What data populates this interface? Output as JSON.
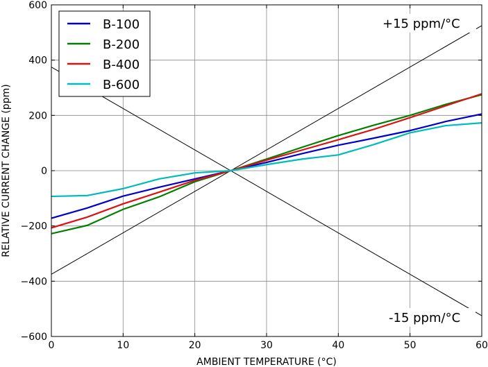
{
  "chart_data": {
    "type": "line",
    "xlabel": "AMBIENT TEMPERATURE (°C)",
    "ylabel": "RELATIVE CURRENT CHANGE (ppm)",
    "xlim": [
      0,
      60
    ],
    "ylim": [
      -600,
      600
    ],
    "xticks": [
      0,
      10,
      20,
      30,
      40,
      50,
      60
    ],
    "yticks": [
      -600,
      -400,
      -200,
      0,
      200,
      400,
      600
    ],
    "xtick_labels": [
      "0",
      "10",
      "20",
      "30",
      "40",
      "50",
      "60"
    ],
    "ytick_labels": [
      "−600",
      "−400",
      "−200",
      "0",
      "200",
      "400",
      "600"
    ],
    "grid": true,
    "legend_position": "top-left",
    "series": [
      {
        "name": "B-100",
        "color": "#0000cc",
        "x": [
          0,
          5,
          10,
          15,
          20,
          25,
          30,
          35,
          40,
          45,
          50,
          55,
          60
        ],
        "values": [
          -172,
          -135,
          -92,
          -60,
          -30,
          0,
          30,
          62,
          92,
          118,
          145,
          178,
          205
        ]
      },
      {
        "name": "B-200",
        "color": "#007f00",
        "x": [
          0,
          5,
          10,
          15,
          20,
          25,
          30,
          35,
          40,
          45,
          50,
          55,
          60
        ],
        "values": [
          -228,
          -198,
          -140,
          -95,
          -40,
          0,
          42,
          85,
          127,
          165,
          200,
          240,
          275
        ]
      },
      {
        "name": "B-400",
        "color": "#dd1111",
        "x": [
          0,
          5,
          10,
          15,
          20,
          25,
          30,
          35,
          40,
          45,
          50,
          55,
          60
        ],
        "values": [
          -207,
          -168,
          -120,
          -78,
          -35,
          0,
          38,
          75,
          112,
          150,
          192,
          235,
          278
        ]
      },
      {
        "name": "B-600",
        "color": "#00bbbb",
        "x": [
          0,
          5,
          10,
          15,
          20,
          25,
          30,
          35,
          40,
          45,
          50,
          55,
          60
        ],
        "values": [
          -93,
          -90,
          -65,
          -30,
          -8,
          0,
          22,
          42,
          57,
          95,
          137,
          163,
          173
        ]
      }
    ],
    "reference_lines": [
      {
        "label": "+15 ppm/°C",
        "x": [
          0,
          60
        ],
        "values": [
          -375,
          525
        ]
      },
      {
        "label": "-15 ppm/°C",
        "x": [
          0,
          60
        ],
        "values": [
          375,
          -525
        ]
      }
    ]
  }
}
